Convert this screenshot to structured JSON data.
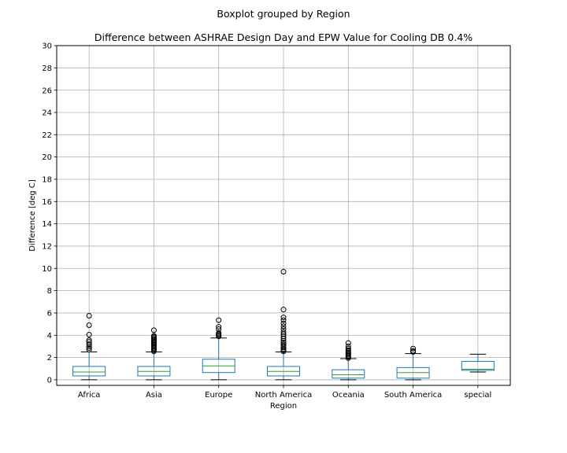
{
  "suptitle": "Boxplot grouped by Region",
  "chart_data": {
    "type": "boxplot",
    "title": "Difference between ASHRAE Design Day and EPW Value for Cooling DB 0.4%",
    "xlabel": "Region",
    "ylabel": "Difference [deg C]",
    "ylim": [
      -0.5,
      30
    ],
    "yticks": [
      0,
      2,
      4,
      6,
      8,
      10,
      12,
      14,
      16,
      18,
      20,
      22,
      24,
      26,
      28,
      30
    ],
    "grid": true,
    "colors": {
      "box": "#1f77b4",
      "median": "#2ca02c",
      "whisker": "#000000",
      "flier": "#000000",
      "grid": "#b0b0b0"
    },
    "categories": [
      "Africa",
      "Asia",
      "Europe",
      "North America",
      "Oceania",
      "South America",
      "special"
    ],
    "boxes": [
      {
        "category": "Africa",
        "whislo": 0.0,
        "q1": 0.35,
        "med": 0.7,
        "q3": 1.2,
        "whishi": 2.5,
        "fliers": [
          2.7,
          2.85,
          3.0,
          3.2,
          3.4,
          3.55,
          4.05,
          4.9,
          5.75
        ]
      },
      {
        "category": "Asia",
        "whislo": 0.0,
        "q1": 0.35,
        "med": 0.75,
        "q3": 1.2,
        "whishi": 2.5,
        "fliers": [
          2.55,
          2.65,
          2.75,
          2.85,
          2.95,
          3.05,
          3.15,
          3.25,
          3.35,
          3.45,
          3.55,
          3.65,
          3.75,
          3.85,
          3.95,
          4.45
        ]
      },
      {
        "category": "Europe",
        "whislo": 0.0,
        "q1": 0.65,
        "med": 1.25,
        "q3": 1.85,
        "whishi": 3.75,
        "fliers": [
          3.9,
          4.0,
          4.1,
          4.2,
          4.55,
          4.75,
          5.35
        ]
      },
      {
        "category": "North America",
        "whislo": 0.0,
        "q1": 0.35,
        "med": 0.75,
        "q3": 1.2,
        "whishi": 2.5,
        "fliers": [
          2.55,
          2.65,
          2.75,
          2.9,
          3.05,
          3.2,
          3.35,
          3.5,
          3.7,
          3.9,
          4.1,
          4.3,
          4.55,
          4.8,
          5.05,
          5.35,
          5.6,
          6.3,
          9.7
        ]
      },
      {
        "category": "Oceania",
        "whislo": 0.0,
        "q1": 0.15,
        "med": 0.45,
        "q3": 0.9,
        "whishi": 1.9,
        "fliers": [
          1.95,
          2.05,
          2.15,
          2.25,
          2.35,
          2.45,
          2.55,
          2.65,
          2.8,
          3.0,
          3.3
        ]
      },
      {
        "category": "South America",
        "whislo": 0.0,
        "q1": 0.15,
        "med": 0.65,
        "q3": 1.1,
        "whishi": 2.35,
        "fliers": [
          2.5,
          2.6,
          2.8
        ]
      },
      {
        "category": "special",
        "whislo": 0.7,
        "q1": 0.85,
        "med": 0.95,
        "q3": 1.65,
        "whishi": 2.3,
        "fliers": []
      }
    ]
  }
}
